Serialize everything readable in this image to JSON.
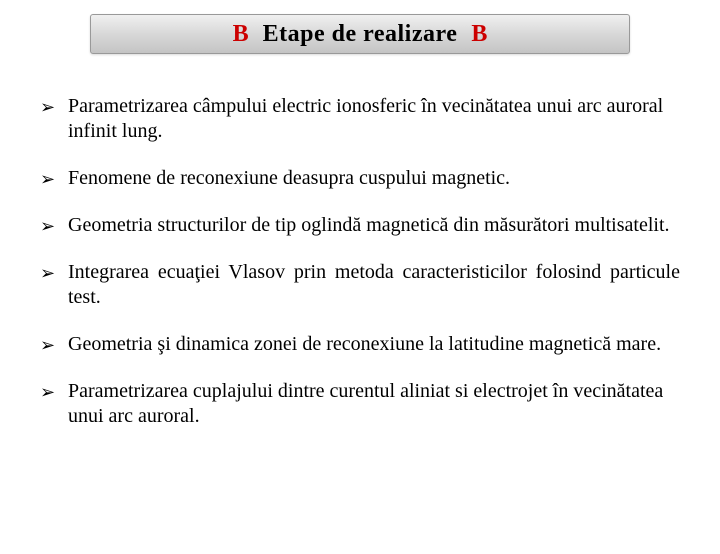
{
  "title": {
    "left_mark": "B",
    "text": "Etape de realizare",
    "right_mark": "B",
    "mark_color": "#cc0000",
    "text_color": "#000000",
    "title_fontsize": 24,
    "bar_gradient_top": "#f0f0f0",
    "bar_gradient_mid": "#d8d8d8",
    "bar_gradient_bottom": "#c4c4c4",
    "bar_border": "#999999"
  },
  "bullet_glyph": "➢",
  "items": [
    {
      "text": "Parametrizarea câmpului electric ionosferic în vecinătatea unui arc auroral infinit lung.",
      "justify": false
    },
    {
      "text": "Fenomene de reconexiune deasupra cuspului magnetic.",
      "justify": false
    },
    {
      "text": "Geometria structurilor de tip oglindă magnetică din măsurători multisatelit.",
      "justify": false
    },
    {
      "text": "Integrarea ecuaţiei Vlasov prin metoda caracteristicilor folosind particule test.",
      "justify": true
    },
    {
      "text": "Geometria şi dinamica zonei de reconexiune la latitudine magnetică mare.",
      "justify": true
    },
    {
      "text": "Parametrizarea cuplajului dintre curentul aliniat si electrojet în vecinătatea unui arc auroral.",
      "justify": false
    }
  ],
  "style": {
    "body_fontsize": 20,
    "body_color": "#000000",
    "bullet_color": "#000000",
    "background_color": "#ffffff"
  }
}
